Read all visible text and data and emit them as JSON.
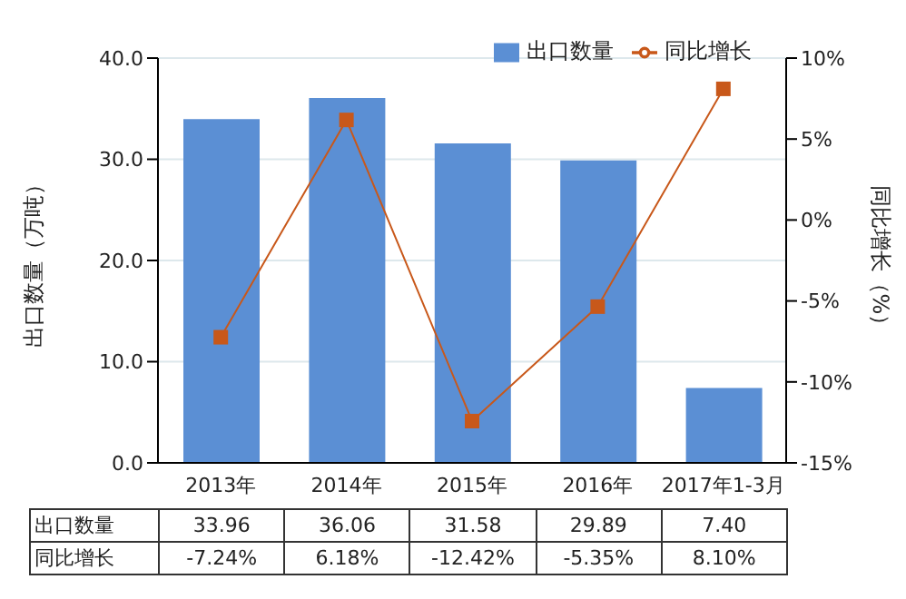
{
  "chart_data": {
    "type": "bar",
    "categories": [
      "2013年",
      "2014年",
      "2015年",
      "2016年",
      "2017年1-3月"
    ],
    "series": [
      {
        "name": "出口数量",
        "color": "#5b8fd4",
        "values": [
          33.96,
          36.06,
          31.58,
          29.89,
          7.4
        ],
        "value_labels": [
          "33.96",
          "36.06",
          "31.58",
          "29.89",
          "7.40"
        ]
      },
      {
        "name": "同比增长",
        "type": "line",
        "axis": "y2",
        "color": "#c8581a",
        "values": [
          -7.24,
          6.18,
          -12.42,
          -5.35,
          8.1
        ],
        "value_labels": [
          "-7.24%",
          "6.18%",
          "-12.42%",
          "-5.35%",
          "8.10%"
        ]
      }
    ],
    "ylabel": "出口数量（万吨）",
    "y2label": "同比增长（%）",
    "ylim": [
      0,
      40
    ],
    "yticks": [
      {
        "value": 0,
        "label": "0.0"
      },
      {
        "value": 10,
        "label": "10.0"
      },
      {
        "value": 20,
        "label": "20.0"
      },
      {
        "value": 30,
        "label": "30.0"
      },
      {
        "value": 40,
        "label": "40.0"
      }
    ],
    "y2lim": [
      -15,
      10
    ],
    "y2ticks": [
      {
        "value": -15,
        "label": "-15%"
      },
      {
        "value": -10,
        "label": "-10%"
      },
      {
        "value": -5,
        "label": "-5%"
      },
      {
        "value": 0,
        "label": "0%"
      },
      {
        "value": 5,
        "label": "5%"
      },
      {
        "value": 10,
        "label": "10%"
      }
    ],
    "grid": "y",
    "legend": "top right",
    "marker": "square"
  }
}
